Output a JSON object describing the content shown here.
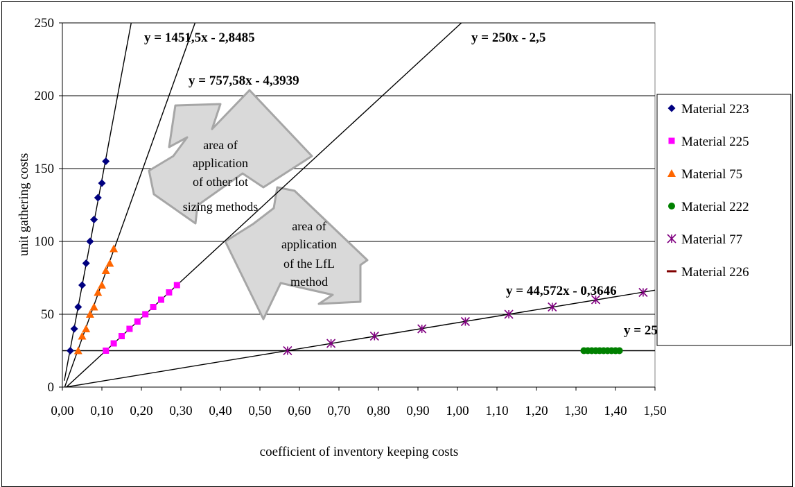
{
  "chart_data": {
    "type": "scatter",
    "title": "",
    "xlabel": "coefficient of inventory keeping costs",
    "ylabel": "unit gathering costs",
    "xlim": [
      0,
      1.5
    ],
    "ylim": [
      0,
      250
    ],
    "x_ticks": [
      "0,00",
      "0,10",
      "0,20",
      "0,30",
      "0,40",
      "0,50",
      "0,60",
      "0,70",
      "0,80",
      "0,90",
      "1,00",
      "1,10",
      "1,20",
      "1,30",
      "1,40",
      "1,50"
    ],
    "y_ticks": [
      "0",
      "50",
      "100",
      "150",
      "200",
      "250"
    ],
    "grid": "horizontal",
    "legend_position": "right",
    "series": [
      {
        "name": "Material 223",
        "marker": "diamond",
        "color": "#000080",
        "x": [
          0.02,
          0.03,
          0.04,
          0.05,
          0.06,
          0.07,
          0.08,
          0.09,
          0.1,
          0.11
        ],
        "y": [
          25,
          40,
          55,
          70,
          85,
          100,
          115,
          130,
          140,
          155
        ]
      },
      {
        "name": "Material 225",
        "marker": "square",
        "color": "#ff00ff",
        "x": [
          0.11,
          0.13,
          0.15,
          0.17,
          0.19,
          0.21,
          0.23,
          0.25,
          0.27,
          0.29
        ],
        "y": [
          25,
          30,
          35,
          40,
          45,
          50,
          55,
          60,
          65,
          70
        ]
      },
      {
        "name": "Material 75",
        "marker": "triangle",
        "color": "#ff6600",
        "x": [
          0.04,
          0.05,
          0.06,
          0.07,
          0.08,
          0.09,
          0.1,
          0.11,
          0.12,
          0.13
        ],
        "y": [
          25,
          35,
          40,
          50,
          55,
          65,
          70,
          80,
          85,
          95
        ]
      },
      {
        "name": "Material 222",
        "marker": "circle",
        "color": "#008000",
        "x": [
          1.32,
          1.33,
          1.34,
          1.35,
          1.36,
          1.37,
          1.38,
          1.39,
          1.4,
          1.41
        ],
        "y": [
          25,
          25,
          25,
          25,
          25,
          25,
          25,
          25,
          25,
          25
        ]
      },
      {
        "name": "Material 77",
        "marker": "asterisk",
        "color": "#800080",
        "x": [
          0.57,
          0.68,
          0.79,
          0.91,
          1.02,
          1.13,
          1.24,
          1.35,
          1.47
        ],
        "y": [
          25,
          30,
          35,
          40,
          45,
          50,
          55,
          60,
          65
        ]
      },
      {
        "name": "Material 226",
        "marker": "dash",
        "color": "#800000",
        "x": [],
        "y": []
      }
    ],
    "trendlines": [
      {
        "label": "y = 1451,5x - 2,8485",
        "slope": 1451.5,
        "intercept": -2.8485
      },
      {
        "label": "y = 757,58x - 4,3939",
        "slope": 757.58,
        "intercept": -4.3939
      },
      {
        "label": "y = 250x - 2,5",
        "slope": 250,
        "intercept": -2.5
      },
      {
        "label": "y = 44,572x - 0,3646",
        "slope": 44.572,
        "intercept": -0.3646
      },
      {
        "label": "y = 25",
        "slope": 0,
        "intercept": 25
      }
    ],
    "annotations": [
      {
        "lines": [
          "area of",
          "application",
          "of other lot",
          "sizing methods"
        ]
      },
      {
        "lines": [
          "area of",
          "application",
          "of the LfL",
          "method"
        ]
      }
    ]
  }
}
